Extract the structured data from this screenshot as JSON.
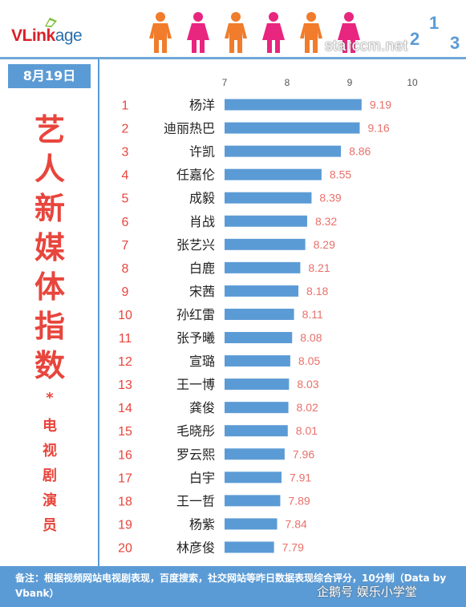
{
  "header": {
    "logo_main": "VLink",
    "logo_suffix": "age",
    "watermark": "starccm.net",
    "podium_digits": [
      "2",
      "1",
      "3"
    ]
  },
  "date": "8月19日",
  "title_chars": [
    "艺",
    "人",
    "新",
    "媒",
    "体",
    "指",
    "数"
  ],
  "asterisk": "*",
  "subtitle_chars": [
    "电",
    "视",
    "剧",
    "演",
    "员"
  ],
  "colors": {
    "bar": "#5b9bd5",
    "value_label": "#e8706a",
    "rank": "#e8453c",
    "male_icon": "#f07c2c",
    "female_icon": "#e8257f"
  },
  "chart_data": {
    "type": "bar",
    "orientation": "horizontal",
    "xlim": [
      7,
      10
    ],
    "x_ticks": [
      "7",
      "8",
      "9",
      "10"
    ],
    "ranks": [
      "1",
      "2",
      "3",
      "4",
      "5",
      "6",
      "7",
      "8",
      "9",
      "10",
      "11",
      "12",
      "13",
      "14",
      "15",
      "16",
      "17",
      "18",
      "19",
      "20"
    ],
    "categories": [
      "杨洋",
      "迪丽热巴",
      "许凯",
      "任嘉伦",
      "成毅",
      "肖战",
      "张艺兴",
      "白鹿",
      "宋茜",
      "孙红雷",
      "张予曦",
      "宣璐",
      "王一博",
      "龚俊",
      "毛晓彤",
      "罗云熙",
      "白宇",
      "王一哲",
      "杨紫",
      "林彦俊"
    ],
    "values": [
      9.19,
      9.16,
      8.86,
      8.55,
      8.39,
      8.32,
      8.29,
      8.21,
      8.18,
      8.11,
      8.08,
      8.05,
      8.03,
      8.02,
      8.01,
      7.96,
      7.91,
      7.89,
      7.84,
      7.79
    ],
    "value_labels": [
      "9.19",
      "9.16",
      "8.86",
      "8.55",
      "8.39",
      "8.32",
      "8.29",
      "8.21",
      "8.18",
      "8.11",
      "8.08",
      "8.05",
      "8.03",
      "8.02",
      "8.01",
      "7.96",
      "7.91",
      "7.89",
      "7.84",
      "7.79"
    ]
  },
  "footer": {
    "note": "备注：根据视频网站电视剧表现，百度搜索，社交网站等昨日数据表现综合评分，10分制（Data by Vbank）",
    "watermark": "企鹅号 娱乐小学堂"
  }
}
